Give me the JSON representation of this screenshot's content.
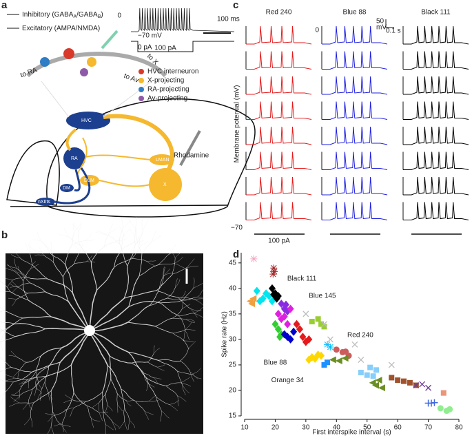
{
  "panel_a": {
    "label": "a",
    "legend_lines": [
      [
        "Inhibitory (GABA",
        "A",
        "/GABA",
        "B",
        ")"
      ],
      [
        "Excitatory (AMPA/NMDA)"
      ]
    ],
    "trace_texts": {
      "zero": "0",
      "rest": "−70 mV",
      "time_bar": "100 ms",
      "i0": "0 pA",
      "i1": "100 pA"
    },
    "circuit_labels": [
      "to RA",
      "to X",
      "to Av"
    ],
    "cell_types": [
      {
        "label": "HVC interneuron",
        "color": "#d8392b"
      },
      {
        "label": "X-projecting",
        "color": "#f5b82e"
      },
      {
        "label": "RA-projecting",
        "color": "#2f7dc4"
      },
      {
        "label": "Av-projecting",
        "color": "#8e5aa8"
      }
    ],
    "brain_labels": {
      "hvc": "HVC",
      "ra": "RA",
      "lman": "LMAN",
      "dlm": "DLM",
      "dm": "DM",
      "nxii": "nXIIts",
      "x": "X",
      "dye": "Rhodamine"
    }
  },
  "panel_b": {
    "label": "b"
  },
  "panel_c": {
    "label": "c",
    "columns": [
      {
        "title": "Red 240",
        "color": "#e41a1c"
      },
      {
        "title": "Blue 88",
        "color": "#1f1fe0"
      },
      {
        "title": "Black 111",
        "color": "#000000"
      }
    ],
    "y_label": "Membrane potential (mV)",
    "zero": "0",
    "rest": "−70",
    "stim": "100 pA",
    "scale_v": "50",
    "scale_unit": "mV",
    "scale_t": "0.1 s"
  },
  "chart_data": {
    "type": "scatter",
    "panel_label": "d",
    "xlabel": "First interspike interval (s)",
    "ylabel": "Spike rate (Hz)",
    "xlim": [
      10,
      80
    ],
    "ylim": [
      15,
      47
    ],
    "xticks": [
      10,
      20,
      30,
      40,
      50,
      60,
      70,
      80
    ],
    "yticks": [
      15,
      20,
      25,
      30,
      35,
      40,
      45
    ],
    "series": [
      {
        "color": "#f4a6c0",
        "marker": "asterisk",
        "x": [
          13
        ],
        "y": [
          45.8
        ]
      },
      {
        "color": "#a52a2a",
        "marker": "asterisk",
        "x": [
          19.5,
          19.7,
          19.3
        ],
        "y": [
          44,
          43.3,
          42.8
        ]
      },
      {
        "color": "#00e5ee",
        "marker": "diamond",
        "x": [
          14,
          16,
          17,
          18,
          15,
          19
        ],
        "y": [
          39.5,
          38,
          39,
          38.5,
          37.5,
          37.5
        ]
      },
      {
        "color": "#000000",
        "marker": "diamond",
        "x": [
          19,
          20,
          21,
          20.5,
          19.5
        ],
        "y": [
          40,
          39,
          38.5,
          38,
          38.8
        ]
      },
      {
        "color": "#f0a040",
        "marker": "triangle",
        "x": [
          12,
          13,
          12.5
        ],
        "y": [
          37.5,
          38,
          37
        ]
      },
      {
        "color": "#8a2be2",
        "marker": "diamond",
        "x": [
          22,
          23,
          24,
          23.5
        ],
        "y": [
          37,
          36,
          35.5,
          36.8
        ]
      },
      {
        "color": "#e020e0",
        "marker": "diamond",
        "x": [
          21,
          22,
          23,
          24,
          25
        ],
        "y": [
          35,
          34,
          34.5,
          33,
          36
        ]
      },
      {
        "color": "#32cd32",
        "marker": "diamond",
        "x": [
          20,
          21,
          22,
          21.5
        ],
        "y": [
          33,
          32,
          31,
          30.5
        ]
      },
      {
        "color": "#0000cd",
        "marker": "diamond",
        "x": [
          23,
          24,
          25,
          26
        ],
        "y": [
          31,
          30.5,
          30,
          31.5
        ]
      },
      {
        "color": "#ffd700",
        "marker": "diamond",
        "x": [
          31,
          32,
          33,
          34,
          35
        ],
        "y": [
          26,
          26.5,
          26.2,
          27,
          26.8
        ]
      },
      {
        "color": "#e41a1c",
        "marker": "diamond",
        "x": [
          27,
          28,
          29,
          30,
          31
        ],
        "y": [
          33,
          32,
          30.5,
          29.5,
          30
        ]
      },
      {
        "color": "#9acd32",
        "marker": "square",
        "x": [
          32,
          34,
          35,
          36
        ],
        "y": [
          33.5,
          34,
          33,
          32.5
        ]
      },
      {
        "color": "#cd5c5c",
        "marker": "circle",
        "x": [
          40,
          42,
          43,
          44
        ],
        "y": [
          28,
          27.5,
          27.6,
          26.8
        ]
      },
      {
        "color": "#6b8e23",
        "marker": "triangle",
        "x": [
          39,
          41,
          43
        ],
        "y": [
          26,
          25.8,
          26.3
        ]
      },
      {
        "color": "#87cefa",
        "marker": "square",
        "x": [
          48,
          50,
          51,
          53,
          52
        ],
        "y": [
          23.5,
          23,
          24.5,
          24,
          22.8
        ]
      },
      {
        "color": "#6b8e23",
        "marker": "triangle",
        "x": [
          52,
          53,
          54,
          55
        ],
        "y": [
          21.5,
          21,
          22,
          20.5
        ]
      },
      {
        "color": "#a0522d",
        "marker": "square",
        "x": [
          58,
          60,
          62,
          64,
          66
        ],
        "y": [
          22.5,
          22,
          21.8,
          21.5,
          21
        ]
      },
      {
        "color": "#6a3d9a",
        "marker": "cross",
        "x": [
          66,
          68,
          70
        ],
        "y": [
          21,
          21.2,
          20.5
        ]
      },
      {
        "color": "#4169e1",
        "marker": "plus",
        "x": [
          70,
          71,
          72
        ],
        "y": [
          17.5,
          17.5,
          17.6
        ]
      },
      {
        "color": "#90ee90",
        "marker": "circle",
        "x": [
          74,
          76,
          77
        ],
        "y": [
          16.5,
          16,
          16.3
        ]
      },
      {
        "color": "#e9967a",
        "marker": "square",
        "x": [
          75
        ],
        "y": [
          19.5
        ]
      },
      {
        "color": "#bbbbbb",
        "marker": "cross",
        "x": [
          30,
          36,
          38,
          46,
          48,
          58
        ],
        "y": [
          35,
          33,
          30,
          29,
          26,
          25
        ]
      },
      {
        "color": "#00bfff",
        "marker": "asterisk",
        "x": [
          37,
          38
        ],
        "y": [
          29,
          28.5
        ]
      },
      {
        "color": "#1e90ff",
        "marker": "square",
        "x": [
          36,
          37
        ],
        "y": [
          25,
          25.5
        ]
      }
    ],
    "annotations": [
      {
        "text": "Black 111",
        "color": "#000000",
        "x": 28.7,
        "y": 41.9
      },
      {
        "text": "Blue 145",
        "color": "#1f1fe0",
        "x": 35.4,
        "y": 38.5
      },
      {
        "text": "Red 240",
        "color": "#e41a1c",
        "x": 47.8,
        "y": 30.8
      },
      {
        "text": "Blue 88",
        "color": "#1f1fe0",
        "x": 20,
        "y": 25.4
      },
      {
        "text": "Orange 34",
        "color": "#f0a040",
        "x": 24,
        "y": 22
      }
    ]
  }
}
